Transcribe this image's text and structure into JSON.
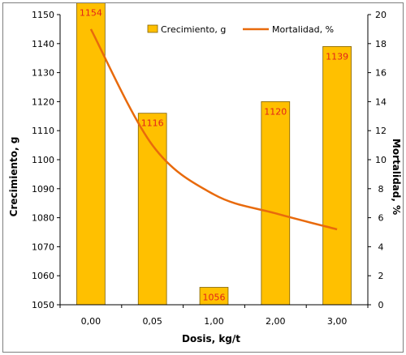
{
  "chart_data": {
    "type": "bar",
    "categories": [
      "0,00",
      "0,05",
      "1,00",
      "2,00",
      "3,00"
    ],
    "series": [
      {
        "name": "Crecimiento, g",
        "kind": "bar",
        "axis": "left",
        "values": [
          1154,
          1116,
          1056,
          1120,
          1139
        ],
        "data_labels": [
          "1154",
          "1116",
          "1056",
          "1120",
          "1139"
        ],
        "color": "#FFC000",
        "stroke": "#7f6000"
      },
      {
        "name": "Mortalidad, %",
        "kind": "line",
        "axis": "right",
        "smooth": true,
        "values": [
          19.0,
          11.0,
          7.6,
          6.3,
          5.2
        ],
        "color": "#E86A0C"
      }
    ],
    "xlabel": "Dosis, kg/t",
    "ylabel": "Crecimiento, g",
    "y2label": "Mortalidad, %",
    "ylim": [
      1050,
      1150
    ],
    "y2lim": [
      0,
      20
    ],
    "yticks": [
      1050,
      1060,
      1070,
      1080,
      1090,
      1100,
      1110,
      1120,
      1130,
      1140,
      1150
    ],
    "y2ticks": [
      0,
      2,
      4,
      6,
      8,
      10,
      12,
      14,
      16,
      18,
      20
    ],
    "grid": false,
    "legend": "top"
  }
}
